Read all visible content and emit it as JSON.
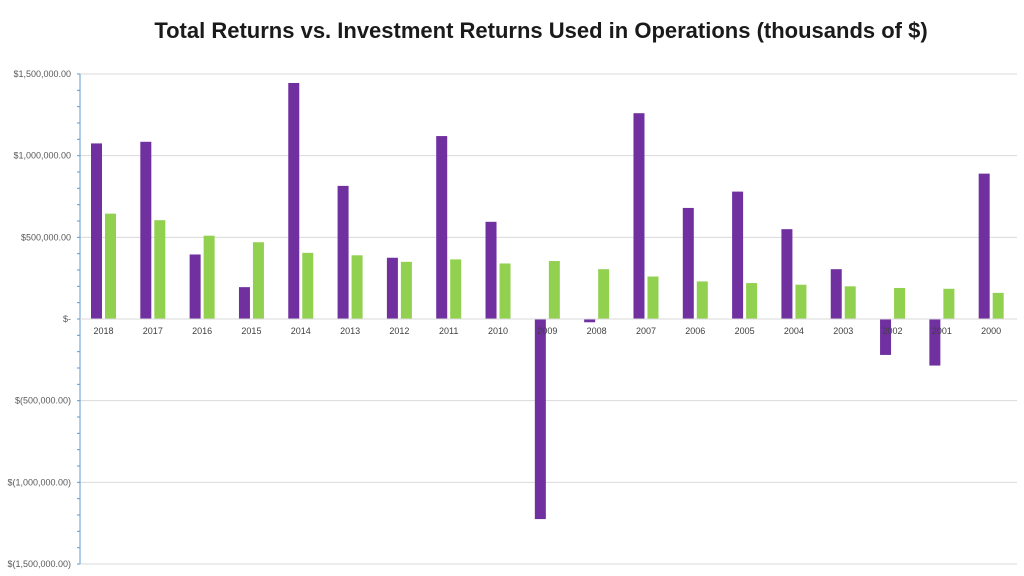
{
  "chart_data": {
    "type": "bar",
    "title": "Total Returns vs. Investment Returns Used in Operations (thousands of $)",
    "categories": [
      "2018",
      "2017",
      "2016",
      "2015",
      "2014",
      "2013",
      "2012",
      "2011",
      "2010",
      "2009",
      "2008",
      "2007",
      "2006",
      "2005",
      "2004",
      "2003",
      "2002",
      "2001",
      "2000"
    ],
    "series": [
      {
        "color": "#7030a0",
        "values": [
          1075000,
          1085000,
          395000,
          195000,
          1445000,
          815000,
          375000,
          1120000,
          595000,
          -1225000,
          -20000,
          1260000,
          680000,
          780000,
          550000,
          305000,
          -220000,
          -285000,
          890000
        ]
      },
      {
        "color": "#92d050",
        "values": [
          645000,
          605000,
          510000,
          470000,
          405000,
          390000,
          350000,
          365000,
          340000,
          355000,
          305000,
          260000,
          230000,
          220000,
          210000,
          200000,
          190000,
          185000,
          160000
        ]
      }
    ],
    "ylim": [
      -1500000,
      1500000
    ],
    "yticks": [
      {
        "value": 1500000,
        "label": "$1,500,000.00"
      },
      {
        "value": 1000000,
        "label": "$1,000,000.00"
      },
      {
        "value": 500000,
        "label": "$500,000.00"
      },
      {
        "value": 0,
        "label": "$-"
      },
      {
        "value": -500000,
        "label": "$(500,000.00)"
      },
      {
        "value": -1000000,
        "label": "$(1,000,000.00)"
      },
      {
        "value": -1500000,
        "label": "$(1,500,000.00)"
      }
    ],
    "grid": true,
    "legend": "none"
  }
}
